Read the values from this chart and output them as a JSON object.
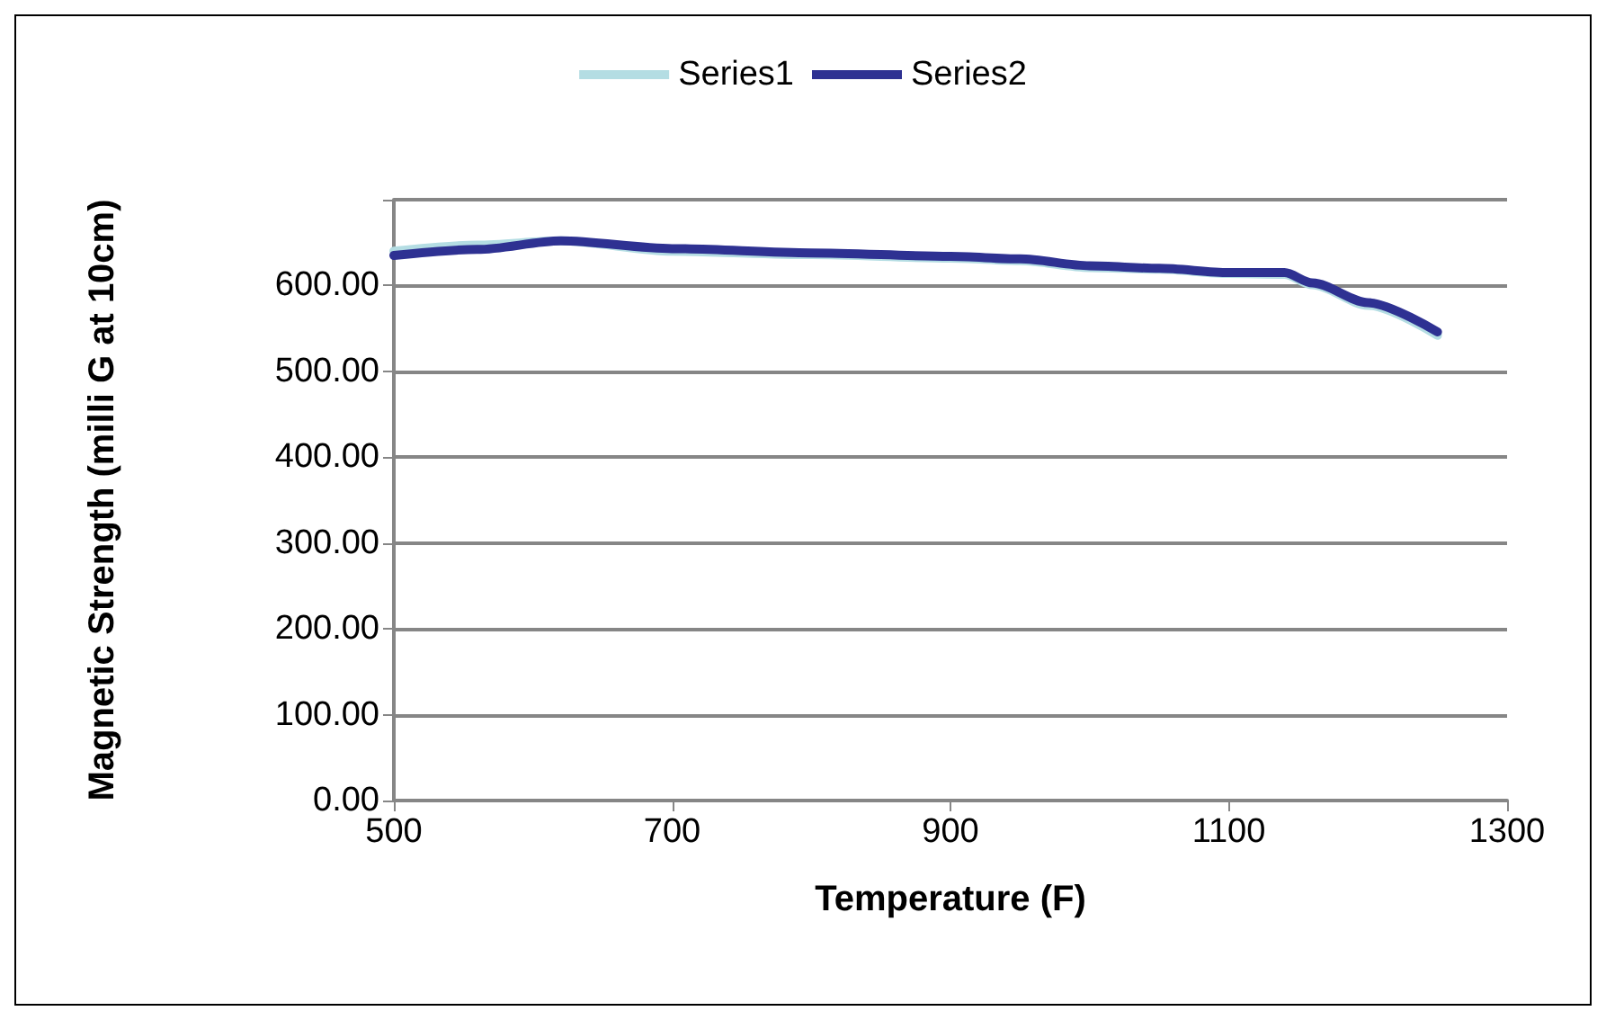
{
  "chart_data": {
    "type": "line",
    "xlabel": "Temperature (F)",
    "ylabel": "Magnetic Strength (milli G at 10cm)",
    "x": [
      500,
      560,
      620,
      700,
      800,
      900,
      950,
      1000,
      1050,
      1100,
      1140,
      1160,
      1200,
      1250
    ],
    "series": [
      {
        "name": "Series1",
        "color": "#b4dde3",
        "values": [
          640,
          647,
          652,
          640,
          636,
          632,
          629,
          621,
          619,
          614,
          613,
          601,
          577,
          542
        ]
      },
      {
        "name": "Series2",
        "color": "#2e3192",
        "values": [
          635,
          642,
          652,
          643,
          638,
          634,
          631,
          623,
          620,
          615,
          615,
          603,
          580,
          546
        ]
      }
    ],
    "xlim": [
      500,
      1300
    ],
    "xticks": [
      500,
      700,
      900,
      1100,
      1300
    ],
    "ylim": [
      0,
      700
    ],
    "yticks": [
      {
        "value": 0,
        "label": "0.00"
      },
      {
        "value": 100,
        "label": "100.00"
      },
      {
        "value": 200,
        "label": "200.00"
      },
      {
        "value": 300,
        "label": "300.00"
      },
      {
        "value": 400,
        "label": "400.00"
      },
      {
        "value": 500,
        "label": "500.00"
      },
      {
        "value": 600,
        "label": "600.00"
      },
      {
        "value": 700,
        "label": null
      }
    ],
    "grid": "y",
    "legend": "top",
    "marker": "none",
    "line_style": "solid"
  }
}
